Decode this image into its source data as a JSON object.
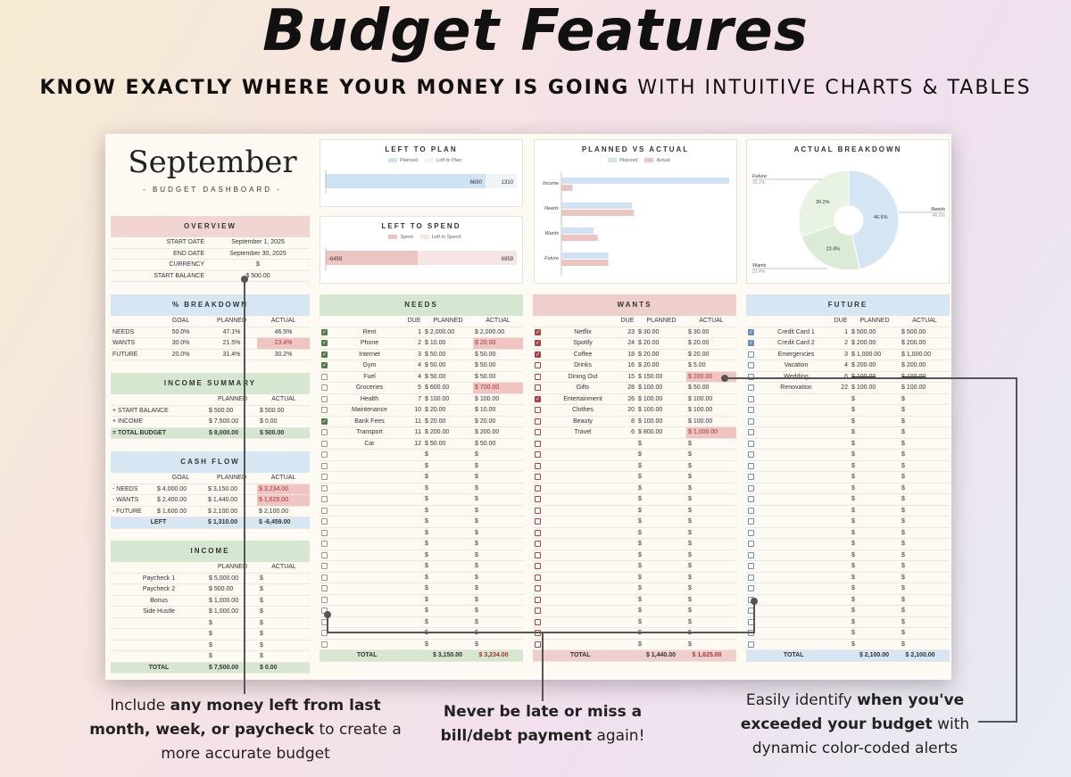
{
  "header": {
    "title": "Budget Features",
    "subtitle_bold": "KNOW EXACTLY WHERE YOUR MONEY IS GOING",
    "subtitle_rest": " WITH INTUITIVE CHARTS & TABLES"
  },
  "dashboard": {
    "month": "September",
    "label": "- BUDGET DASHBOARD -"
  },
  "overview": {
    "title": "OVERVIEW",
    "rows": [
      [
        "START DATE",
        "September 1, 2025"
      ],
      [
        "END DATE",
        "September 30, 2025"
      ],
      [
        "CURRENCY",
        "$"
      ],
      [
        "START BALANCE",
        "$  500.00"
      ]
    ]
  },
  "breakdown": {
    "title": "% BREAKDOWN",
    "cols": [
      "",
      "GOAL",
      "PLANNED",
      "ACTUAL"
    ],
    "rows": [
      [
        "NEEDS",
        "50.0%",
        "47.1%",
        "46.5%"
      ],
      [
        "WANTS",
        "30.0%",
        "21.5%",
        "23.4%"
      ],
      [
        "FUTURE",
        "20.0%",
        "31.4%",
        "30.2%"
      ]
    ]
  },
  "income_summary": {
    "title": "INCOME SUMMARY",
    "cols": [
      "",
      "PLANNED",
      "ACTUAL"
    ],
    "rows": [
      [
        "+  START BALANCE",
        "$  500.00",
        "$  500.00"
      ],
      [
        "+  INCOME",
        "$  7,500.00",
        "$  0.00"
      ],
      [
        "=  TOTAL BUDGET",
        "$  8,000.00",
        "$  500.00"
      ]
    ]
  },
  "cash_flow": {
    "title": "CASH FLOW",
    "cols": [
      "",
      "GOAL",
      "PLANNED",
      "ACTUAL"
    ],
    "rows": [
      [
        "-  NEEDS",
        "$  4,000.00",
        "$  3,150.00",
        "$  3,234.00"
      ],
      [
        "-  WANTS",
        "$  2,400.00",
        "$  1,440.00",
        "$  1,625.00"
      ],
      [
        "-  FUTURE",
        "$  1,600.00",
        "$  2,100.00",
        "$  2,100.00"
      ]
    ],
    "left": [
      "LEFT",
      "$  1,310.00",
      "$  -6,459.00"
    ]
  },
  "income": {
    "title": "INCOME",
    "cols": [
      "",
      "PLANNED",
      "ACTUAL"
    ],
    "rows": [
      [
        "Paycheck 1",
        "$  5,000.00",
        "$"
      ],
      [
        "Paycheck 2",
        "$  500.00",
        "$"
      ],
      [
        "Bonus",
        "$  1,000.00",
        "$"
      ],
      [
        "Side Hustle",
        "$  1,000.00",
        "$"
      ],
      [
        "",
        "$",
        "$"
      ],
      [
        "",
        "$",
        "$"
      ],
      [
        "",
        "$",
        "$"
      ],
      [
        "",
        "$",
        "$"
      ]
    ],
    "total": [
      "TOTAL",
      "$  7,500.00",
      "$  0.00"
    ]
  },
  "left_to_plan": {
    "title": "LEFT TO PLAN",
    "legend": [
      "Planned",
      "Left to Plan"
    ],
    "values": [
      6690,
      1310
    ],
    "colors": [
      "#cfe2f3",
      "#eef3f8"
    ]
  },
  "left_to_spend": {
    "title": "LEFT TO SPEND",
    "legend": [
      "Spent",
      "Left to Spend"
    ],
    "values": [
      -6459,
      6959
    ],
    "colors": [
      "#ecc5c0",
      "#f6e5e3"
    ]
  },
  "planned_vs_actual": {
    "title": "PLANNED VS ACTUAL",
    "legend": [
      "Planned",
      "Actual"
    ],
    "chart_data": {
      "type": "bar",
      "categories": [
        "Income",
        "Needs",
        "Wants",
        "Future"
      ],
      "series": [
        {
          "name": "Planned",
          "values": [
            7500,
            3150,
            1440,
            2100
          ]
        },
        {
          "name": "Actual",
          "values": [
            500,
            3234,
            1625,
            2100
          ]
        }
      ],
      "colors": [
        "#cfe2f3",
        "#ecc5c0"
      ]
    }
  },
  "actual_breakdown": {
    "title": "ACTUAL BREAKDOWN",
    "chart_data": {
      "type": "pie",
      "labels": [
        "Needs",
        "Wants",
        "Future"
      ],
      "values": [
        46.5,
        23.4,
        30.2
      ],
      "colors": [
        "#d4e5f3",
        "#dcebd6",
        "#e9f3e4"
      ]
    },
    "labels": [
      "Future",
      "30.2%",
      "Needs",
      "46.5%",
      "Wants",
      "23.4%"
    ]
  },
  "needs": {
    "title": "NEEDS",
    "cols": [
      "",
      "",
      "DUE",
      "PLANNED",
      "ACTUAL"
    ],
    "rows": [
      [
        1,
        "Rent",
        "1",
        "$  2,000.00",
        "$  2,000.00",
        0
      ],
      [
        1,
        "Phone",
        "2",
        "$  10.00",
        "$  20.00",
        1
      ],
      [
        1,
        "Internet",
        "3",
        "$  50.00",
        "$  50.00",
        0
      ],
      [
        1,
        "Gym",
        "4",
        "$  50.00",
        "$  50.00",
        0
      ],
      [
        0,
        "Fuel",
        "4",
        "$  50.00",
        "$  50.00",
        0
      ],
      [
        0,
        "Groceries",
        "5",
        "$  600.00",
        "$  700.00",
        1
      ],
      [
        0,
        "Health",
        "7",
        "$  100.00",
        "$  100.00",
        0
      ],
      [
        0,
        "Maintenance",
        "10",
        "$  20.00",
        "$  10.00",
        0
      ],
      [
        1,
        "Bank Fees",
        "11",
        "$  20.00",
        "$  20.00",
        0
      ],
      [
        0,
        "Transport",
        "11",
        "$  200.00",
        "$  200.00",
        0
      ],
      [
        0,
        "Car",
        "12",
        "$  50.00",
        "$  50.00",
        0
      ]
    ],
    "total": [
      "TOTAL",
      "$  3,150.00",
      "$  3,234.00"
    ]
  },
  "wants": {
    "title": "WANTS",
    "cols": [
      "",
      "",
      "DUE",
      "PLANNED",
      "ACTUAL"
    ],
    "rows": [
      [
        1,
        "Netflix",
        "23",
        "$  30.00",
        "$  30.00",
        0
      ],
      [
        1,
        "Spotify",
        "24",
        "$  20.00",
        "$  20.00",
        0
      ],
      [
        1,
        "Coffee",
        "18",
        "$  20.00",
        "$  20.00",
        0
      ],
      [
        0,
        "Drinks",
        "16",
        "$  20.00",
        "$  5.00",
        0
      ],
      [
        0,
        "Dining Out",
        "15",
        "$  150.00",
        "$  200.00",
        1
      ],
      [
        0,
        "Gifts",
        "28",
        "$  100.00",
        "$  50.00",
        0
      ],
      [
        1,
        "Entertainment",
        "26",
        "$  100.00",
        "$  100.00",
        0
      ],
      [
        0,
        "Clothes",
        "20",
        "$  100.00",
        "$  100.00",
        0
      ],
      [
        0,
        "Beauty",
        "8",
        "$  100.00",
        "$  100.00",
        0
      ],
      [
        0,
        "Travel",
        "6",
        "$  800.00",
        "$  1,000.00",
        1
      ]
    ],
    "total": [
      "TOTAL",
      "$  1,440.00",
      "$  1,625.00"
    ]
  },
  "future": {
    "title": "FUTURE",
    "cols": [
      "",
      "",
      "DUE",
      "PLANNED",
      "ACTUAL"
    ],
    "rows": [
      [
        1,
        "Credit Card 1",
        "1",
        "$  500.00",
        "$  500.00",
        0
      ],
      [
        1,
        "Credit Card 2",
        "2",
        "$  200.00",
        "$  200.00",
        0
      ],
      [
        0,
        "Emergencies",
        "3",
        "$  1,000.00",
        "$  1,000.00",
        0
      ],
      [
        0,
        "Vacation",
        "4",
        "$  200.00",
        "$  200.00",
        0
      ],
      [
        0,
        "Wedding",
        "6",
        "$  100.00",
        "$  100.00",
        0
      ],
      [
        0,
        "Renovation",
        "22",
        "$  100.00",
        "$  100.00",
        0
      ]
    ],
    "total": [
      "TOTAL",
      "$  2,100.00",
      "$  2,100.00"
    ]
  },
  "callouts": {
    "left": {
      "pre": "Include ",
      "bold": "any money left from last month, week, or paycheck",
      "post": " to create a more accurate budget"
    },
    "mid": {
      "bold": "Never be late or miss a bill/debt payment",
      "post": " again!"
    },
    "right": {
      "pre": "Easily identify ",
      "bold": "when you've exceeded your budget",
      "post": " with dynamic color-coded alerts"
    }
  }
}
